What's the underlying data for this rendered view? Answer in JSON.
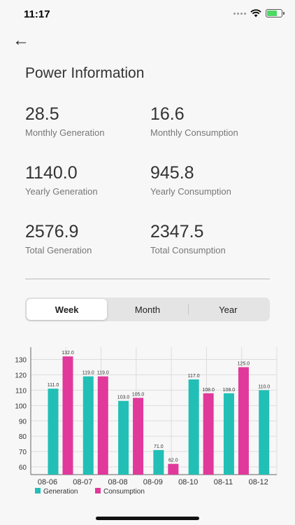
{
  "status_bar": {
    "time": "11:17"
  },
  "page": {
    "title": "Power Information"
  },
  "stats": [
    {
      "value": "28.5",
      "label": "Monthly Generation"
    },
    {
      "value": "16.6",
      "label": "Monthly Consumption"
    },
    {
      "value": "1140.0",
      "label": "Yearly Generation"
    },
    {
      "value": "945.8",
      "label": "Yearly Consumption"
    },
    {
      "value": "2576.9",
      "label": "Total Generation"
    },
    {
      "value": "2347.5",
      "label": "Total Consumption"
    }
  ],
  "tabs": [
    {
      "label": "Week",
      "active": true
    },
    {
      "label": "Month",
      "active": false
    },
    {
      "label": "Year",
      "active": false
    }
  ],
  "icons": {
    "back": "arrow-left-icon",
    "wifi": "wifi-icon",
    "battery": "battery-charging-icon"
  },
  "chart_data": {
    "type": "bar",
    "categories": [
      "08-06",
      "08-07",
      "08-08",
      "08-09",
      "08-10",
      "08-11",
      "08-12"
    ],
    "series": [
      {
        "name": "Generation",
        "color": "#22bfb6",
        "values": [
          111.0,
          119.0,
          103.0,
          71.0,
          117.0,
          108.0,
          110.0
        ],
        "labels": [
          "111.0",
          "119.0",
          "103.0",
          "71.0",
          "117.0",
          "108.0",
          "110.0"
        ]
      },
      {
        "name": "Consumption",
        "color": "#e0399b",
        "values": [
          132.0,
          119.0,
          105.0,
          62.0,
          108.0,
          125.0,
          null
        ],
        "labels": [
          "132.0",
          "119.0",
          "105.0",
          "62.0",
          "108.0",
          "125.0",
          ""
        ]
      }
    ],
    "yticks": [
      "60",
      "70",
      "80",
      "90",
      "100",
      "110",
      "120",
      "130"
    ],
    "ylim": [
      55,
      138
    ],
    "grid": true,
    "legend": "bottom-left"
  }
}
